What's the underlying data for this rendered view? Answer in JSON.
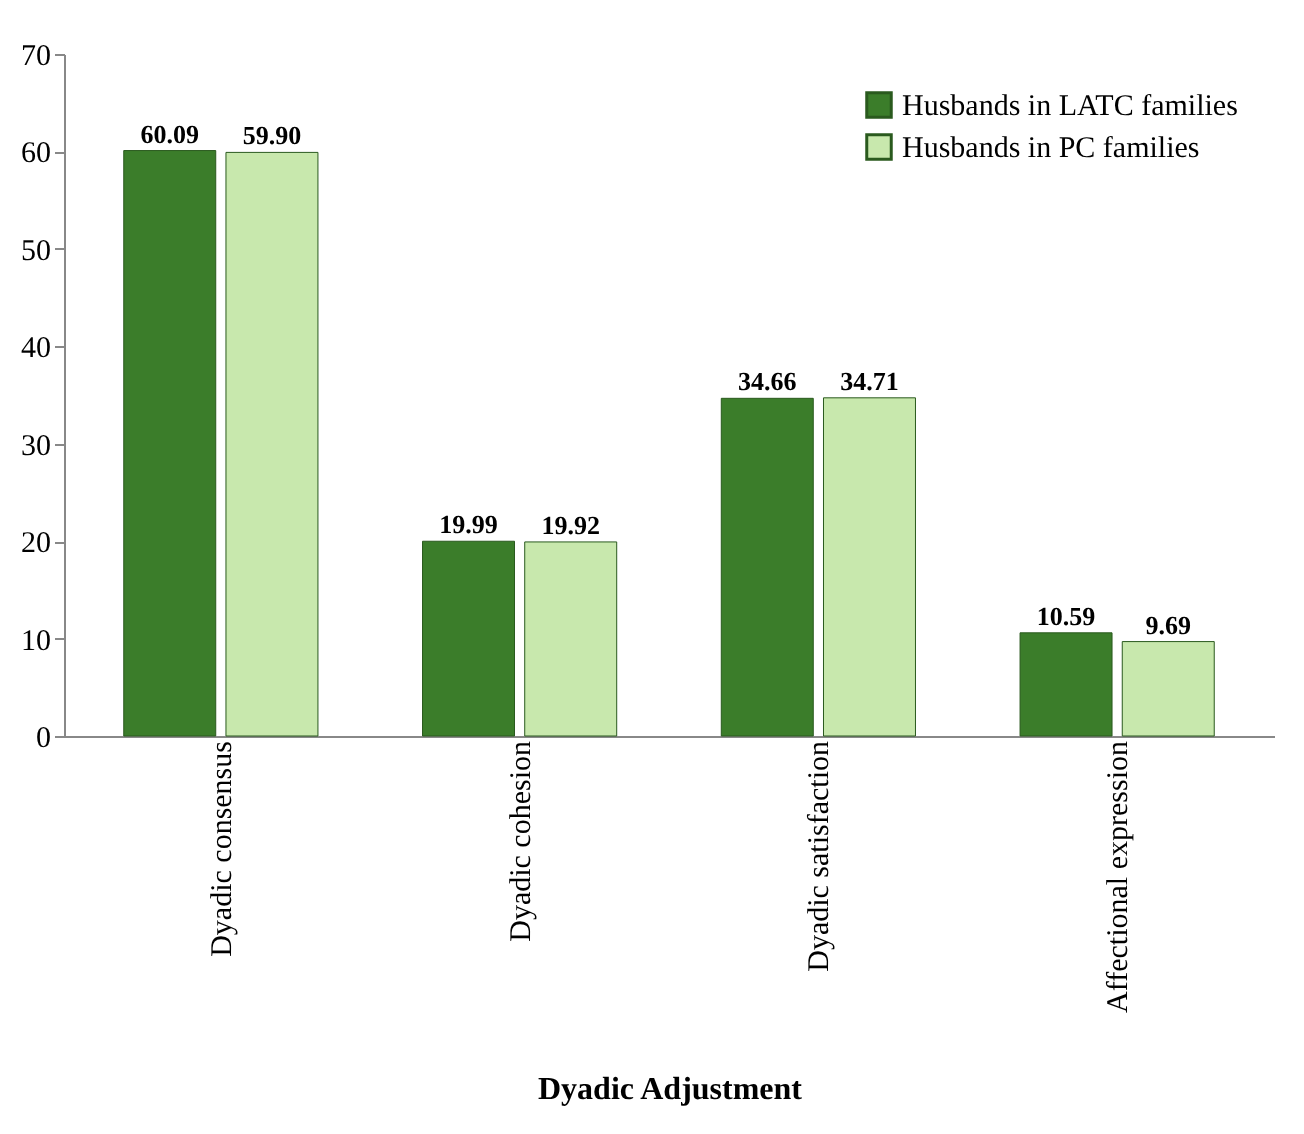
{
  "chart_data": {
    "type": "bar",
    "xlabel": "Dyadic Adjustment",
    "categories": [
      "Dyadic consensus",
      "Dyadic cohesion",
      "Dyadic satisfaction",
      "Affectional expression"
    ],
    "series": [
      {
        "name": "Husbands in LATC families",
        "color": "#3b7d2a",
        "values": [
          60.09,
          19.99,
          34.66,
          10.59
        ],
        "value_labels": [
          "60.09",
          "19.99",
          "34.66",
          "10.59"
        ]
      },
      {
        "name": "Husbands in PC families",
        "color": "#c8e8ad",
        "values": [
          59.9,
          19.92,
          34.71,
          9.69
        ],
        "value_labels": [
          "59.90",
          "19.92",
          "34.71",
          "9.69"
        ]
      }
    ],
    "ylim": [
      0,
      70
    ],
    "yticks": [
      0,
      10,
      20,
      30,
      40,
      50,
      60,
      70
    ],
    "legend": "top right",
    "grid": false
  }
}
